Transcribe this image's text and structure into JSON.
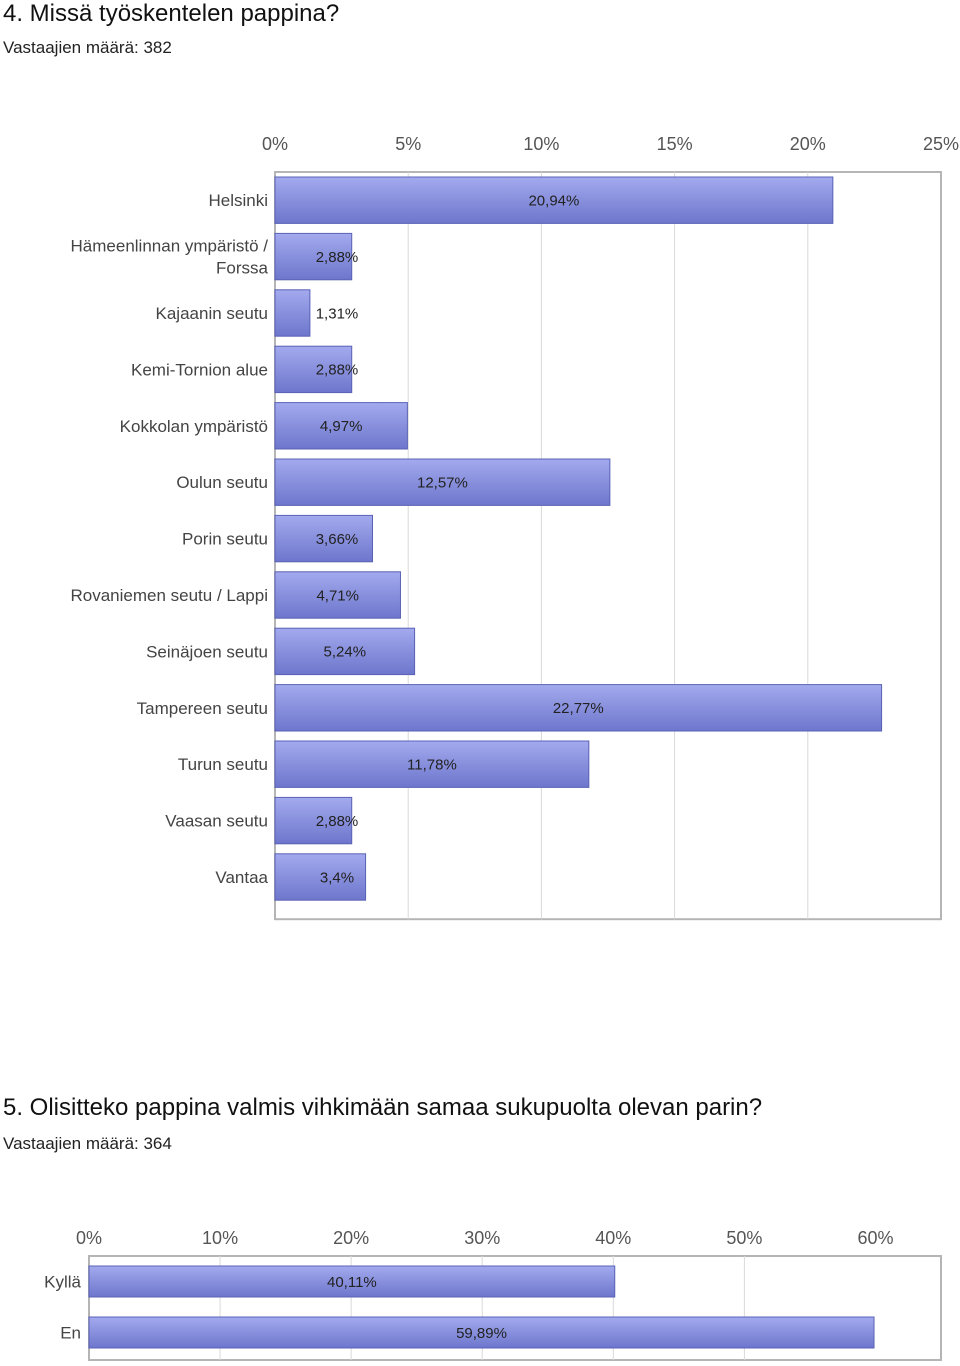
{
  "questions": [
    {
      "title": "4. Missä työskentelen pappina?",
      "respondents": "Vastaajien määrä: 382"
    },
    {
      "title": "5. Olisitteko pappina valmis vihkimään samaa sukupuolta olevan parin?",
      "respondents": "Vastaajien määrä: 364"
    }
  ],
  "colors": {
    "bar_top": "#a3aaee",
    "bar_bottom": "#6d76cc",
    "bar_edge": "#5a62b5",
    "grid": "#d9d9d9",
    "axis": "#b5b5b5"
  },
  "chart_data": [
    {
      "type": "bar",
      "orientation": "horizontal",
      "xlim": [
        0,
        25
      ],
      "ticks": [
        0,
        5,
        10,
        15,
        20,
        25
      ],
      "tick_labels": [
        "0%",
        "5%",
        "10%",
        "15%",
        "20%",
        "25%"
      ],
      "grid": true,
      "categories": [
        [
          "Helsinki"
        ],
        [
          "Hämeenlinnan ympäristö /",
          "Forssa"
        ],
        [
          "Kajaanin seutu"
        ],
        [
          "Kemi-Tornion alue"
        ],
        [
          "Kokkolan ympäristö"
        ],
        [
          "Oulun seutu"
        ],
        [
          "Porin seutu"
        ],
        [
          "Rovaniemen seutu / Lappi"
        ],
        [
          "Seinäjoen seutu"
        ],
        [
          "Tampereen seutu"
        ],
        [
          "Turun seutu"
        ],
        [
          "Vaasan seutu"
        ],
        [
          "Vantaa"
        ]
      ],
      "values": [
        20.94,
        2.88,
        1.31,
        2.88,
        4.97,
        12.57,
        3.66,
        4.71,
        5.24,
        22.77,
        11.78,
        2.88,
        3.4
      ],
      "value_labels": [
        "20,94%",
        "2,88%",
        "1,31%",
        "2,88%",
        "4,97%",
        "12,57%",
        "3,66%",
        "4,71%",
        "5,24%",
        "22,77%",
        "11,78%",
        "2,88%",
        "3,4%"
      ]
    },
    {
      "type": "bar",
      "orientation": "horizontal",
      "xlim": [
        0,
        65
      ],
      "ticks": [
        0,
        10,
        20,
        30,
        40,
        50,
        60
      ],
      "tick_labels": [
        "0%",
        "10%",
        "20%",
        "30%",
        "40%",
        "50%",
        "60%"
      ],
      "grid": true,
      "categories": [
        [
          "Kyllä"
        ],
        [
          "En"
        ]
      ],
      "values": [
        40.11,
        59.89
      ],
      "value_labels": [
        "40,11%",
        "59,89%"
      ]
    }
  ]
}
